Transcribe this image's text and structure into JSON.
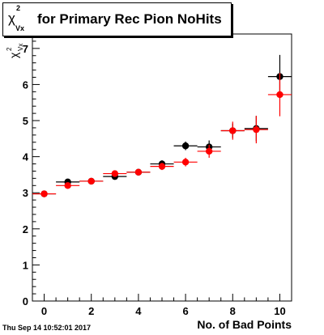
{
  "title": {
    "symbol": "χ",
    "sup": "2",
    "sub": "Vx",
    "text": "for Primary Rec Pion NoHits"
  },
  "timestamp": "Thu Sep 14 10:52:01 2017",
  "chart_data": {
    "type": "scatter",
    "xlabel": "No. of Bad Points",
    "ylabel_symbol": "χ",
    "ylabel_sup": "2",
    "ylabel_sub": "Vx",
    "xlim": [
      -0.5,
      10.5
    ],
    "ylim": [
      0,
      7.4
    ],
    "xticks": [
      0,
      2,
      4,
      6,
      8,
      10
    ],
    "yticks": [
      0,
      1,
      2,
      3,
      4,
      5,
      6,
      7
    ],
    "series": [
      {
        "color": "#000000",
        "x": [
          0,
          1,
          2,
          3,
          4,
          5,
          6,
          7,
          8,
          9,
          10
        ],
        "y": [
          2.97,
          3.3,
          3.32,
          3.45,
          3.57,
          3.8,
          4.3,
          4.27,
          4.72,
          4.78,
          6.22
        ],
        "yerr": [
          0.03,
          0.04,
          0.04,
          0.06,
          0.07,
          0.1,
          0.12,
          0.18,
          0.2,
          0.35,
          0.6
        ]
      },
      {
        "color": "#ff0000",
        "x": [
          0,
          1,
          2,
          3,
          4,
          5,
          6,
          7,
          8,
          9,
          10
        ],
        "y": [
          2.97,
          3.2,
          3.32,
          3.53,
          3.57,
          3.73,
          3.85,
          4.15,
          4.72,
          4.75,
          5.72
        ],
        "yerr": [
          0.03,
          0.04,
          0.04,
          0.06,
          0.07,
          0.1,
          0.12,
          0.18,
          0.25,
          0.38,
          0.6
        ]
      }
    ]
  }
}
